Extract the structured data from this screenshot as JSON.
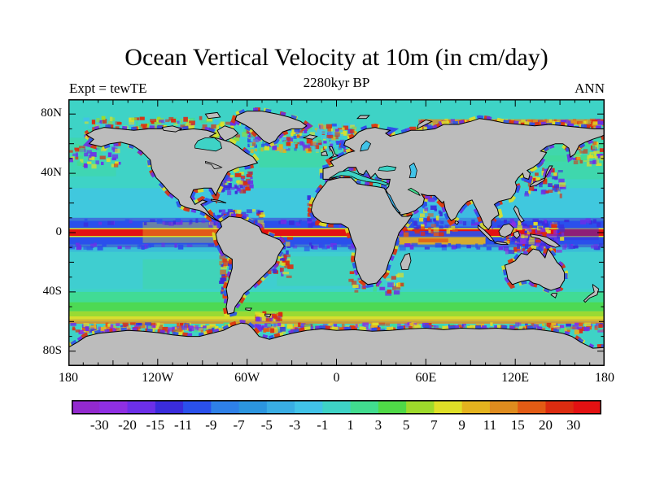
{
  "title": "Ocean Vertical Velocity at 10m (in cm/day)",
  "subtitle": "2280kyr BP",
  "annotation_left": "Expt = tewTE",
  "annotation_right": "ANN",
  "chart_data": {
    "type": "heatmap",
    "description": "World map (equirectangular) of ocean vertical velocity at 10 m depth in cm/day; grey land, colored ocean, annual mean",
    "x_axis": {
      "ticks": [
        "180",
        "120W",
        "60W",
        "0",
        "60E",
        "120E",
        "180"
      ],
      "tick_lons": [
        -180,
        -120,
        -60,
        0,
        60,
        120,
        180
      ],
      "minor_step_deg": 10,
      "range_deg": [
        -180,
        180
      ]
    },
    "y_axis": {
      "ticks": [
        "80N",
        "40N",
        "0",
        "40S",
        "80S"
      ],
      "tick_lats": [
        80,
        40,
        0,
        -40,
        -80
      ],
      "minor_step_deg": 10,
      "range_deg": [
        90,
        -90
      ]
    },
    "colorbar": {
      "boundary_labels": [
        "-30",
        "-20",
        "-15",
        "-11",
        "-9",
        "-7",
        "-5",
        "-3",
        "-1",
        "1",
        "3",
        "5",
        "7",
        "9",
        "11",
        "15",
        "20",
        "30"
      ],
      "levels": [
        -30,
        -20,
        -15,
        -11,
        -9,
        -7,
        -5,
        -3,
        -1,
        1,
        3,
        5,
        7,
        9,
        11,
        15,
        20,
        30
      ],
      "colors": [
        "#9229CE",
        "#8F2FE3",
        "#6C2FE8",
        "#3A2CDC",
        "#2A50EC",
        "#2E80E8",
        "#2B95DF",
        "#39ADE4",
        "#41C3E8",
        "#3ED3C6",
        "#41DC8F",
        "#4FD947",
        "#9EDA2B",
        "#DFDF27",
        "#E4B31E",
        "#DF8C1E",
        "#E35B14",
        "#DC2C10",
        "#E31112"
      ]
    },
    "land_color": "#BCBCBC",
    "coast_color": "#000000",
    "frame_color": "#000000",
    "ocean_base_value": 0,
    "zonal_bands": [
      {
        "lat": [
          30,
          9
        ],
        "v": -2,
        "op": 0.7
      },
      {
        "lat": [
          10,
          8
        ],
        "v": -13,
        "op": 0.55
      },
      {
        "lat": [
          8,
          3
        ],
        "v": -10,
        "op": 1
      },
      {
        "lat": [
          3,
          2.2
        ],
        "v": 8,
        "op": 1
      },
      {
        "lat": [
          2.2,
          -2.2
        ],
        "v": 35,
        "op": 1
      },
      {
        "lat": [
          -2.2,
          -3
        ],
        "v": 8,
        "op": 1
      },
      {
        "lat": [
          -3,
          -8
        ],
        "v": -10,
        "op": 1
      },
      {
        "lat": [
          -8,
          -10
        ],
        "v": -13,
        "op": 0.55
      },
      {
        "lat": [
          -10,
          -13
        ],
        "v": -4,
        "op": 0.6
      },
      {
        "lat": [
          -13,
          -38
        ],
        "v": -2,
        "op": 0.3
      },
      {
        "lat": [
          -40,
          -47
        ],
        "v": 2,
        "op": 0.9
      },
      {
        "lat": [
          -47,
          -53
        ],
        "v": 4,
        "op": 0.9
      },
      {
        "lat": [
          -53,
          -56.5
        ],
        "v": 6,
        "op": 0.95
      },
      {
        "lat": [
          -56.5,
          -58.5
        ],
        "v": 8,
        "op": 0.95
      },
      {
        "lat": [
          -58.5,
          -60
        ],
        "v": 10,
        "op": 0.9
      },
      {
        "lat": [
          -60,
          -61.5
        ],
        "v": 13,
        "op": 0.85
      }
    ],
    "regional_patches": [
      {
        "lon": [
          -130,
          -80
        ],
        "lat": [
          7,
          -7
        ],
        "v": 8,
        "op": 0.35
      },
      {
        "lon": [
          42,
          100
        ],
        "lat": [
          1,
          -3
        ],
        "v": -10,
        "op": 0.9
      },
      {
        "lon": [
          42,
          100
        ],
        "lat": [
          -3,
          -8
        ],
        "v": 9,
        "op": 0.92
      },
      {
        "lon": [
          55,
          75
        ],
        "lat": [
          -4,
          -6.5
        ],
        "v": 16,
        "op": 0.85
      },
      {
        "lon": [
          124,
          149
        ],
        "lat": [
          -1,
          -9
        ],
        "v": -18,
        "op": 0.7
      },
      {
        "lon": [
          150,
          176
        ],
        "lat": [
          3,
          -5
        ],
        "v": -13,
        "op": 0.5
      },
      {
        "lon": [
          -52,
          -8
        ],
        "lat": [
          60,
          44
        ],
        "v": 2,
        "op": 0.5
      },
      {
        "lon": [
          140,
          180
        ],
        "lat": [
          52,
          36
        ],
        "v": 2,
        "op": 0.45
      },
      {
        "lon": [
          -180,
          -148
        ],
        "lat": [
          52,
          38
        ],
        "v": 2,
        "op": 0.35
      },
      {
        "lon": [
          136,
          158
        ],
        "lat": [
          60,
          48
        ],
        "v": 2,
        "op": 0.5
      },
      {
        "lon": [
          52,
          95
        ],
        "lat": [
          19,
          4
        ],
        "v": -4,
        "op": 0.5
      },
      {
        "lon": [
          55,
          179
        ],
        "lat": [
          76.5,
          74
        ],
        "v": 12,
        "op": 0.8
      },
      {
        "lon": [
          55,
          179
        ],
        "lat": [
          74,
          72.5
        ],
        "v": 8,
        "op": 0.5
      },
      {
        "lon": [
          -180,
          -157
        ],
        "lat": [
          64,
          52
        ],
        "v": 2,
        "op": 0.4
      },
      {
        "lon": [
          165,
          180
        ],
        "lat": [
          64,
          52
        ],
        "v": 2,
        "op": 0.4
      },
      {
        "lon": [
          -130,
          -72
        ],
        "lat": [
          -18,
          -38
        ],
        "v": 2,
        "op": 0.35
      },
      {
        "lon": [
          -40,
          12
        ],
        "lat": [
          -16,
          -36
        ],
        "v": 2,
        "op": 0.3
      }
    ]
  }
}
